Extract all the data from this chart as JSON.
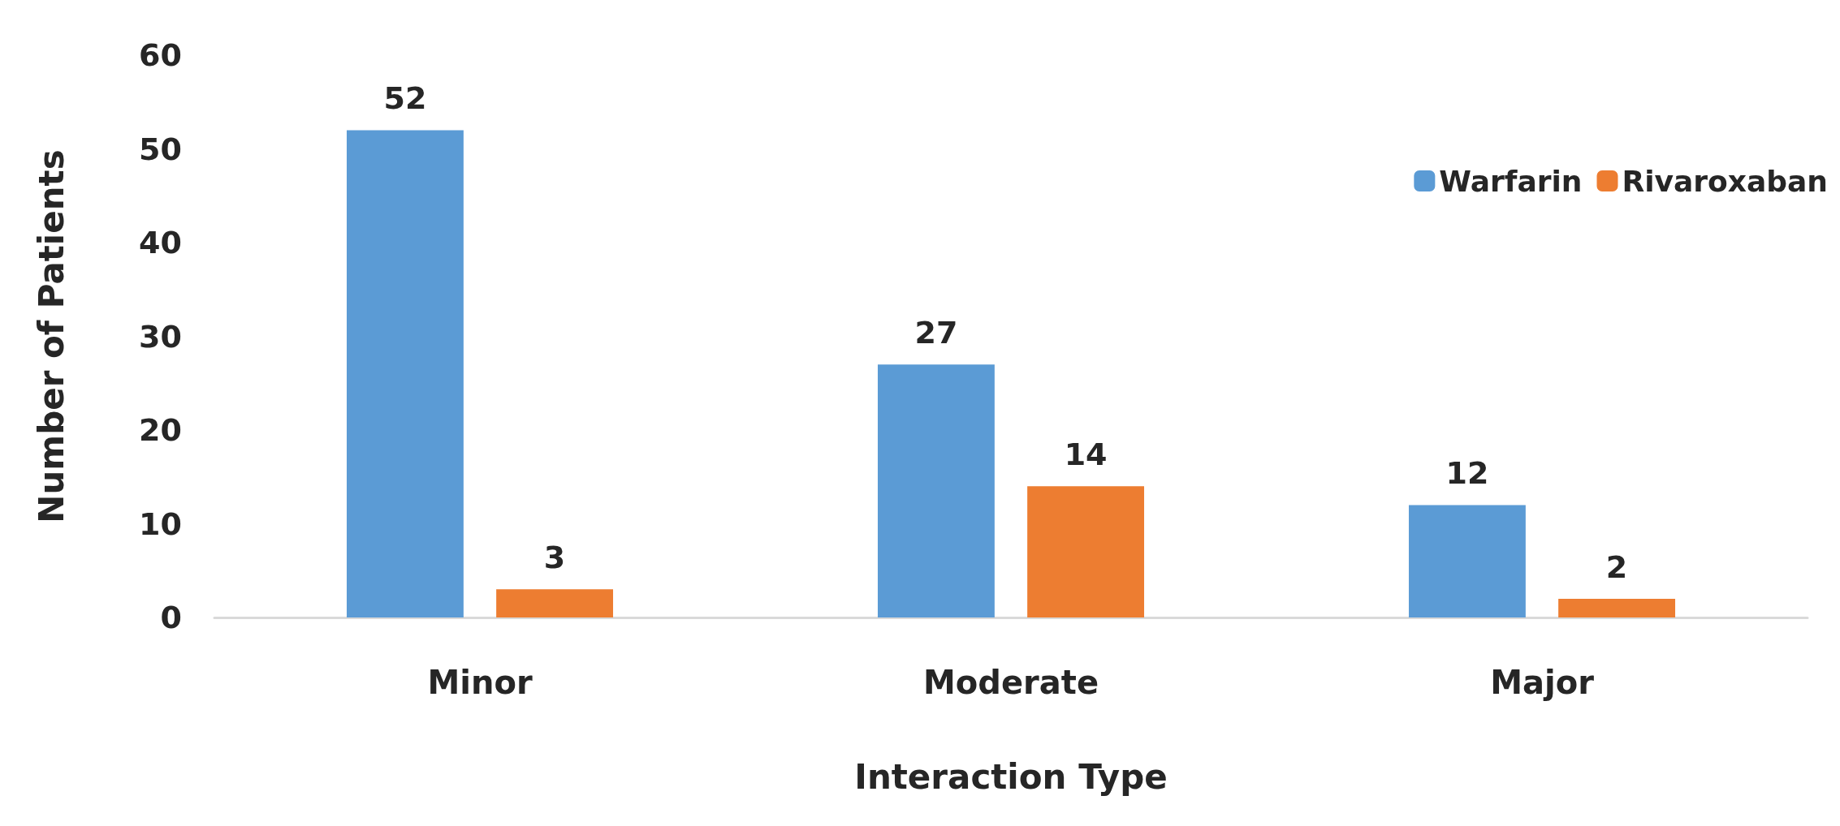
{
  "chart_data": {
    "type": "bar",
    "xlabel": "Interaction Type",
    "ylabel": "Number of Patients",
    "categories": [
      "Minor",
      "Moderate",
      "Major"
    ],
    "series": [
      {
        "name": "Warfarin",
        "color": "#5b9bd5",
        "values": [
          52,
          27,
          12
        ]
      },
      {
        "name": "Rivaroxaban",
        "color": "#ed7d31",
        "values": [
          3,
          14,
          2
        ]
      }
    ],
    "ylim": [
      0,
      60
    ],
    "yticks": [
      0,
      10,
      20,
      30,
      40,
      50,
      60
    ],
    "grid": false,
    "legend": "top right",
    "data_labels": true
  }
}
